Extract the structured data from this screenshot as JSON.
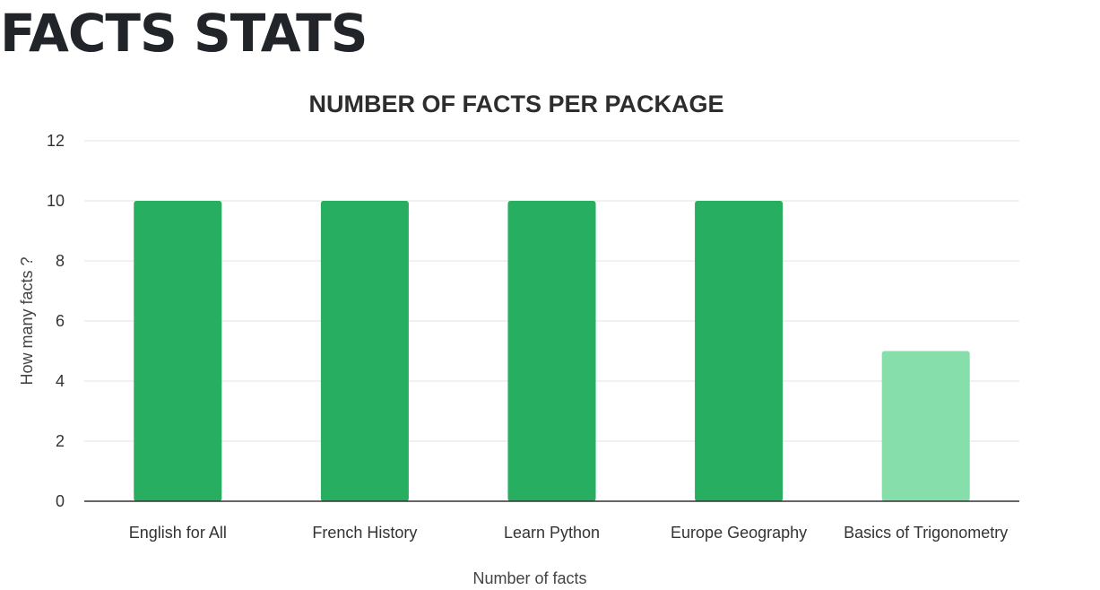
{
  "page": {
    "heading": "FACTS STATS"
  },
  "chart_data": {
    "type": "bar",
    "title": "NUMBER OF FACTS PER PACKAGE",
    "xlabel": "Number of facts",
    "ylabel": "How many facts ?",
    "categories": [
      "English for All",
      "French History",
      "Learn Python",
      "Europe Geography",
      "Basics of Trigonometry"
    ],
    "values": [
      10,
      10,
      10,
      10,
      5
    ],
    "bar_colors": [
      "#27ae60",
      "#27ae60",
      "#27ae60",
      "#27ae60",
      "#86dfaa"
    ],
    "ylim": [
      0,
      12
    ],
    "yticks": [
      0,
      2,
      4,
      6,
      8,
      10,
      12
    ],
    "grid": true,
    "legend": "none"
  }
}
